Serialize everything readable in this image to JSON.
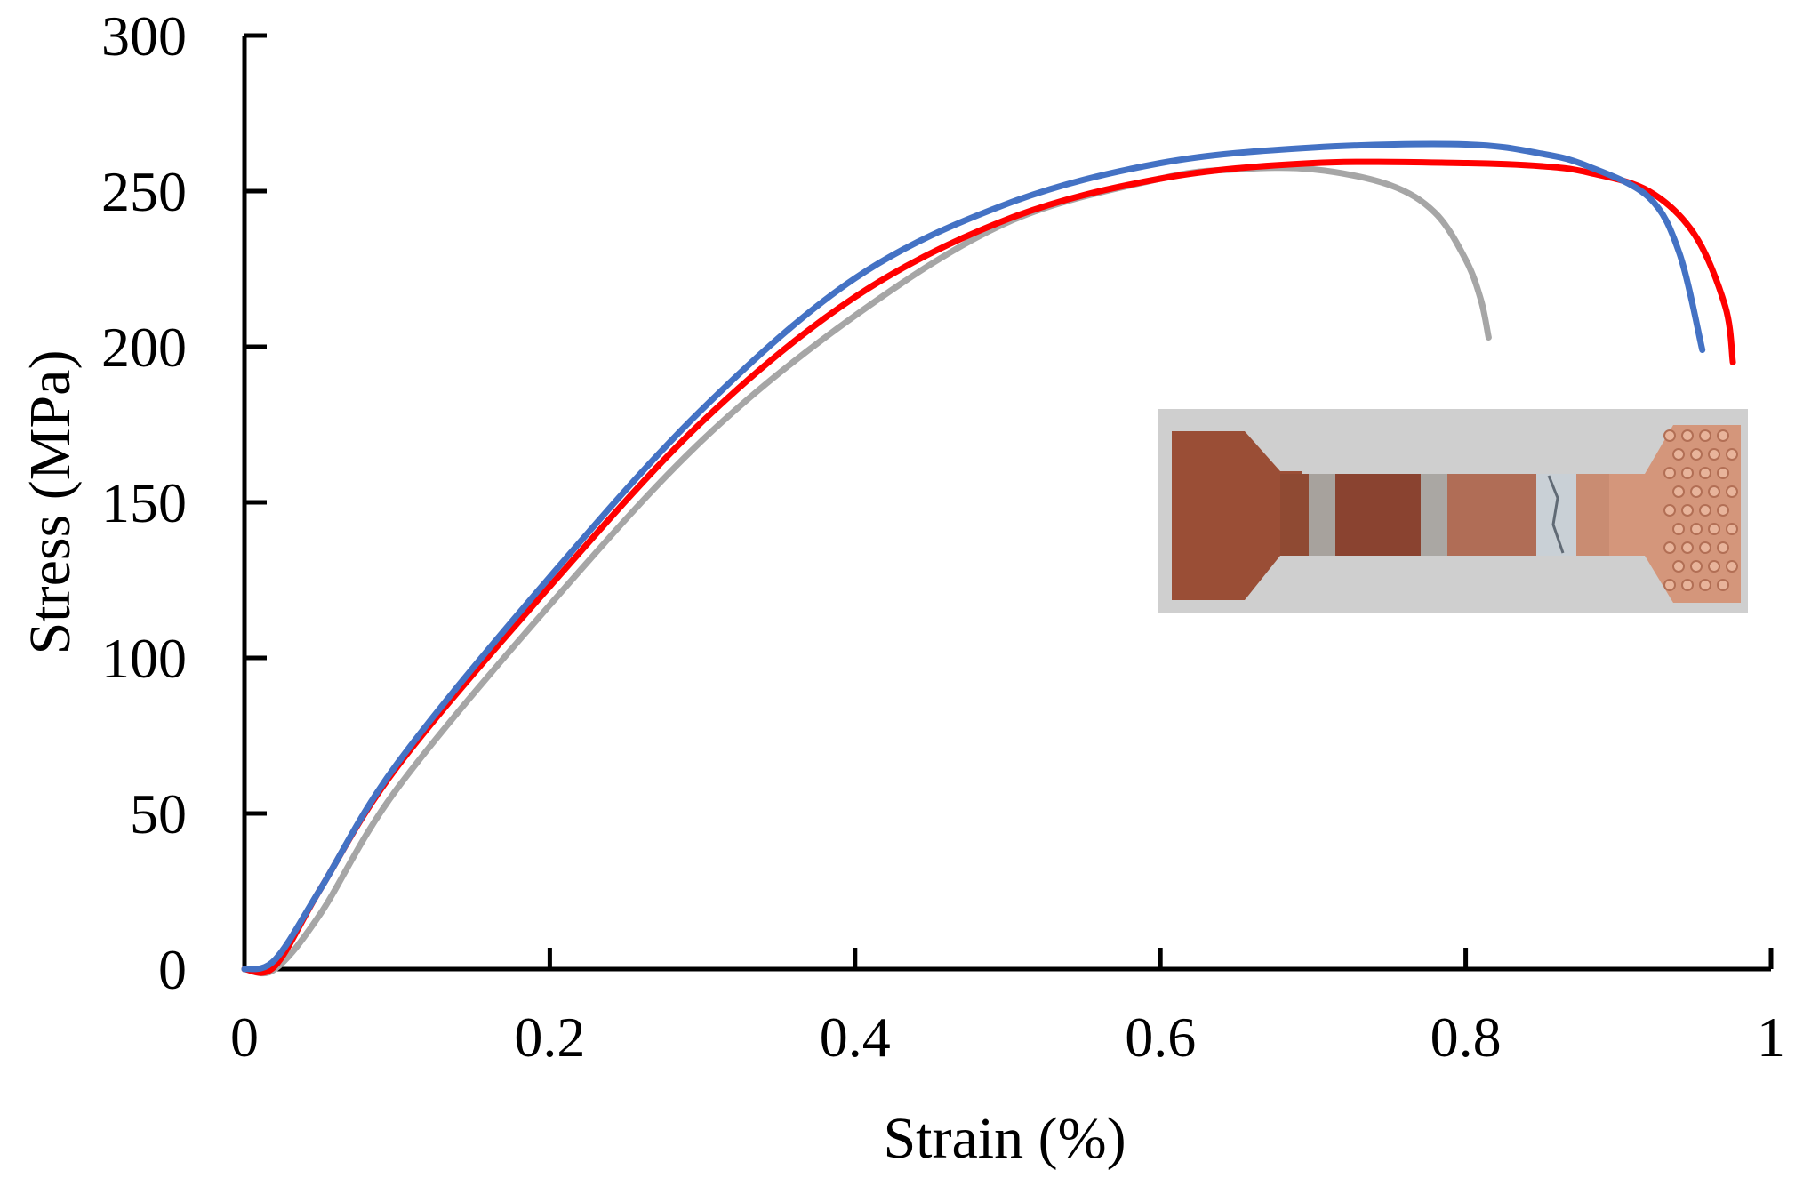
{
  "chart_data": {
    "type": "line",
    "xlabel": "Strain (%)",
    "ylabel": "Stress (MPa)",
    "xlim": [
      0,
      1
    ],
    "ylim": [
      0,
      300
    ],
    "xticks": [
      "0",
      "0.2",
      "0.4",
      "0.6",
      "0.8",
      "1"
    ],
    "yticks": [
      "0",
      "50",
      "100",
      "150",
      "200",
      "250",
      "300"
    ],
    "grid": false,
    "legend": "none",
    "inset": "photo of fractured tensile test specimen (copper with welded joint)",
    "series": [
      {
        "color": "#a6a6a6",
        "points": [
          [
            0,
            0
          ],
          [
            0.02,
            0
          ],
          [
            0.05,
            18
          ],
          [
            0.1,
            58
          ],
          [
            0.2,
            117
          ],
          [
            0.3,
            170
          ],
          [
            0.4,
            210
          ],
          [
            0.5,
            240
          ],
          [
            0.6,
            254
          ],
          [
            0.65,
            257
          ],
          [
            0.7,
            257
          ],
          [
            0.75,
            252
          ],
          [
            0.78,
            243
          ],
          [
            0.8,
            228
          ],
          [
            0.81,
            215
          ],
          [
            0.815,
            203
          ]
        ]
      },
      {
        "color": "#ff0000",
        "points": [
          [
            0,
            0
          ],
          [
            0.02,
            1
          ],
          [
            0.05,
            26
          ],
          [
            0.1,
            65
          ],
          [
            0.2,
            123
          ],
          [
            0.3,
            176
          ],
          [
            0.4,
            216
          ],
          [
            0.5,
            241
          ],
          [
            0.6,
            254
          ],
          [
            0.7,
            259
          ],
          [
            0.8,
            259
          ],
          [
            0.85,
            258
          ],
          [
            0.88,
            256
          ],
          [
            0.92,
            250
          ],
          [
            0.95,
            236
          ],
          [
            0.97,
            213
          ],
          [
            0.975,
            195
          ]
        ]
      },
      {
        "color": "#4472c4",
        "points": [
          [
            0,
            0
          ],
          [
            0.02,
            3
          ],
          [
            0.05,
            26
          ],
          [
            0.1,
            66
          ],
          [
            0.2,
            126
          ],
          [
            0.3,
            180
          ],
          [
            0.4,
            222
          ],
          [
            0.5,
            246
          ],
          [
            0.6,
            259
          ],
          [
            0.7,
            264
          ],
          [
            0.8,
            265
          ],
          [
            0.85,
            262
          ],
          [
            0.88,
            258
          ],
          [
            0.92,
            248
          ],
          [
            0.94,
            230
          ],
          [
            0.955,
            199
          ]
        ]
      }
    ]
  }
}
